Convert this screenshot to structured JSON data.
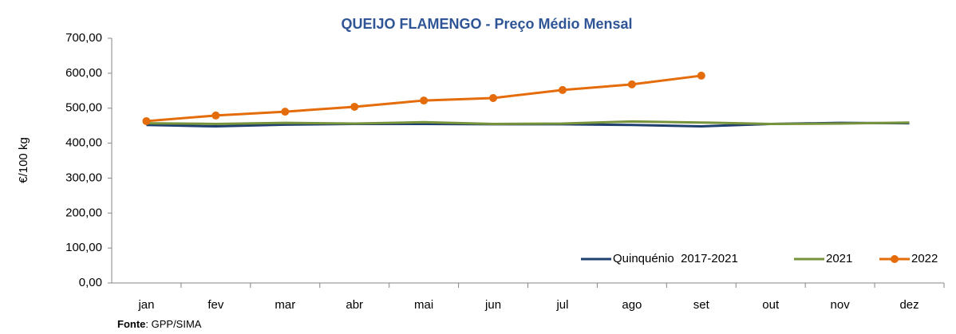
{
  "chart_data": {
    "type": "line",
    "title": "QUEIJO FLAMENGO - Preço Médio Mensal",
    "y_label": "€/100 kg",
    "categories": [
      "jan",
      "fev",
      "mar",
      "abr",
      "mai",
      "jun",
      "jul",
      "ago",
      "set",
      "out",
      "nov",
      "dez"
    ],
    "series": [
      {
        "name": "Quinquénio  2017-2021",
        "color": "#1f3f6e",
        "values": [
          452,
          448,
          453,
          455,
          455,
          454,
          454,
          452,
          448,
          455,
          458,
          457
        ]
      },
      {
        "name": "2021",
        "color": "#77933c",
        "values": [
          457,
          455,
          458,
          456,
          460,
          455,
          456,
          462,
          459,
          455,
          456,
          459
        ]
      },
      {
        "name": "2022",
        "color": "#e46c0a",
        "marker": true,
        "values": [
          463,
          479,
          490,
          504,
          522,
          529,
          552,
          568,
          593,
          null,
          null,
          null
        ]
      }
    ],
    "ylim": [
      0,
      700
    ],
    "yticks": [
      {
        "value": 0,
        "label": "0,00"
      },
      {
        "value": 100,
        "label": "100,00"
      },
      {
        "value": 200,
        "label": "200,00"
      },
      {
        "value": 300,
        "label": "300,00"
      },
      {
        "value": 400,
        "label": "400,00"
      },
      {
        "value": 500,
        "label": "500,00"
      },
      {
        "value": 600,
        "label": "600,00"
      },
      {
        "value": 700,
        "label": "700,00"
      }
    ],
    "grid": false,
    "legend": "bottom-right",
    "source": {
      "label": "Fonte",
      "text": ": GPP/SIMA"
    }
  }
}
